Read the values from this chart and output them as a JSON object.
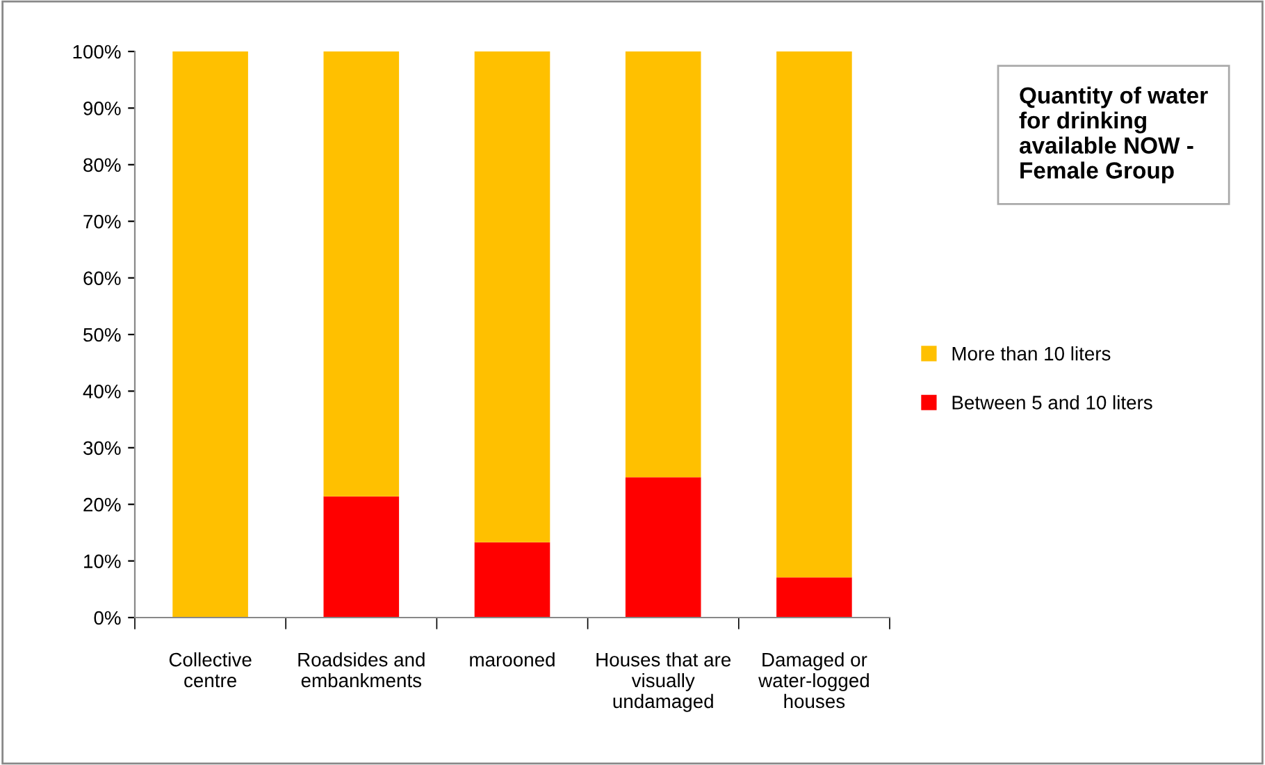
{
  "chart_data": {
    "type": "bar",
    "title": "Quantity of water\nfor drinking\navailable NOW -\nFemale Group",
    "categories": [
      "Collective\ncentre",
      "Roadsides and\nembankments",
      "marooned",
      "Houses that are\nvisually\nundamaged",
      "Damaged or\nwater-logged\nhouses"
    ],
    "stacked": true,
    "series": [
      {
        "name": "Between 5 and 10 liters",
        "color": "#ff0000",
        "values": [
          0,
          21.4,
          13.3,
          24.8,
          7.1
        ]
      },
      {
        "name": "More than 10 liters",
        "color": "#ffc000",
        "values": [
          100,
          78.6,
          86.7,
          75.2,
          92.9
        ]
      }
    ],
    "ylim": [
      0,
      100
    ],
    "yticks": [
      {
        "value": 0,
        "label": "0%"
      },
      {
        "value": 10,
        "label": "10%"
      },
      {
        "value": 20,
        "label": "20%"
      },
      {
        "value": 30,
        "label": "30%"
      },
      {
        "value": 40,
        "label": "40%"
      },
      {
        "value": 50,
        "label": "50%"
      },
      {
        "value": 60,
        "label": "60%"
      },
      {
        "value": 70,
        "label": "70%"
      },
      {
        "value": 80,
        "label": "80%"
      },
      {
        "value": 90,
        "label": "90%"
      },
      {
        "value": 100,
        "label": "100%"
      }
    ],
    "grid": false,
    "legend": "right"
  }
}
